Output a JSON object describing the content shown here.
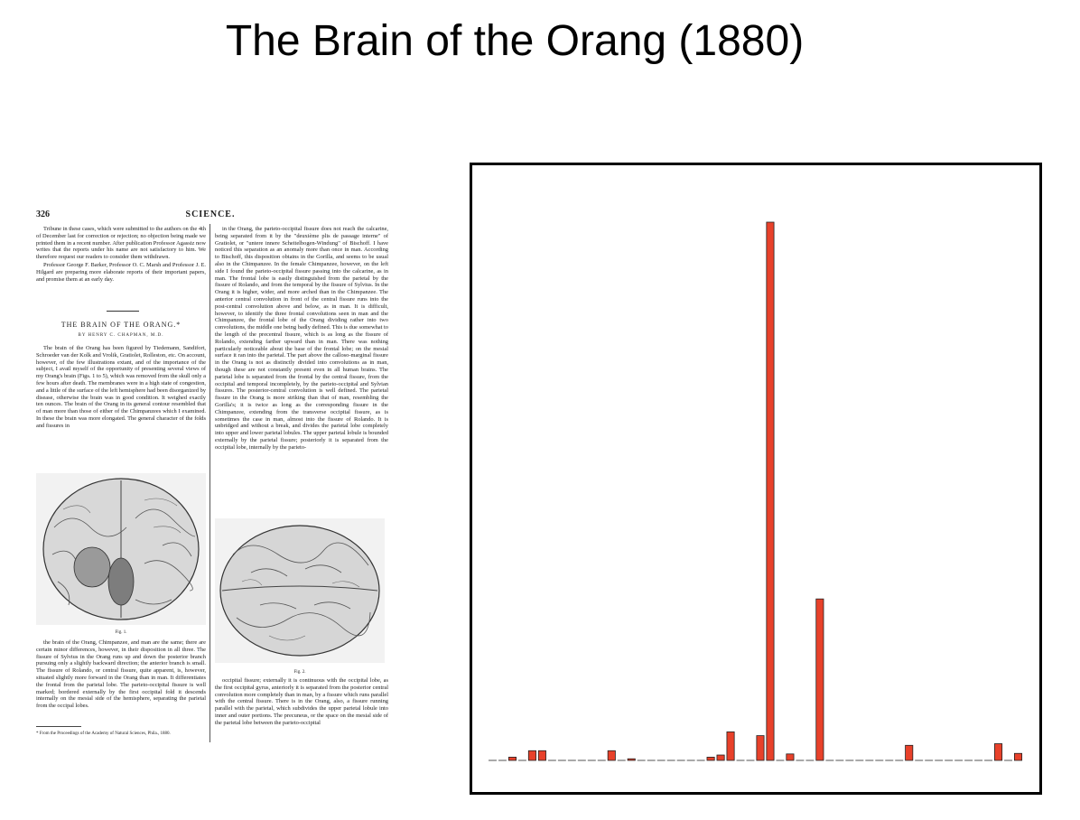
{
  "slide": {
    "title": "The Brain of the Orang (1880)"
  },
  "document": {
    "page_number": "326",
    "journal": "SCIENCE.",
    "left_intro": "Tribune in these cases, which were submitted to the authors on the 4th of December last for correction or rejection; no objection being made we printed them in a recent number. After publication Professor Agassiz now writes that the reports under his name are not satisfactory to him. We therefore request our readers to consider them withdrawn.",
    "left_intro_2": "Professor George F. Barker, Professor O. C. Marsh and Professor J. E. Hilgard are preparing more elaborate reports of their important papers, and promise them at an early day.",
    "article_title": "THE BRAIN OF THE ORANG.*",
    "article_author": "BY HENRY C. CHAPMAN, M.D.",
    "left_body": "The brain of the Orang has been figured by Tiedemann, Sandifort, Schroeder van der Kolk and Vrolik, Gratiolet, Rolleston, etc. On account, however, of the few illustrations extant, and of the importance of the subject, I avail myself of the opportunity of presenting several views of my Orang's brain (Figs. 1 to 5), which was removed from the skull only a few hours after death. The membranes were in a high state of congestion, and a little of the surface of the left hemisphere had been disorganized by disease, otherwise the brain was in good condition. It weighed exactly ten ounces. The brain of the Orang in its general contour resembled that of man more than those of either of the Chimpanzees which I examined. In these the brain was more elongated. The general character of the folds and fissures in",
    "fig1_caption": "Fig. 1.",
    "left_bottom": "the brain of the Orang, Chimpanzee, and man are the same; there are certain minor differences, however, in their disposition in all three. The fissure of Sylvius in the Orang runs up and down the posterior branch pursuing only a slightly backward direction; the anterior branch is small. The fissure of Rolando, or central fissure, quite apparent, is, however, situated slightly more forward in the Orang than in man. It differentiates the frontal from the parietal lobe. The parieto-occipital fissure is well marked; bordered externally by the first occipital fold it descends internally on the mesial side of the hemisphere, separating the parietal from the occipal lobes.",
    "footnote": "* From the Proceedings of the Academy of Natural Sciences, Phila., 1880.",
    "right_body": "in the Orang, the parieto-occipital fissure does not reach the calcarine, being separated from it by the \"deuxième plis de passage interne\" of Gratiolet, or \"untere innere Scheitelbogen-Windung\" of Bischoff. I have noticed this separation as an anomaly more than once in man. According to Bischoff, this disposition obtains in the Gorilla, and seems to be usual also in the Chimpanzee. In the female Chimpanzee, however, on the left side I found the parieto-occipital fissure passing into the calcarine, as in man. The frontal lobe is easily distinguished from the parietal by the fissure of Rolando, and from the temporal by the fissure of Sylvius. In the Orang it is higher, wider, and more arched than in the Chimpanzee. The anterior central convolution in front of the central fissure runs into the post-central convolution above and below, as in man. It is difficult, however, to identify the three frontal convolutions seen in man and the Chimpanzee, the frontal lobe of the Orang dividing rather into two convolutions, the middle one being badly defined. This is due somewhat to the length of the precentral fissure, which is as long as the fissure of Rolando, extending farther upward than in man. There was nothing particularly noticeable about the base of the frontal lobe; on the mesial surface it ran into the parietal. The part above the calloso-marginal fissure in the Orang is not as distinctly divided into convolutions as in man, though these are not constantly present even in all human brains. The parietal lobe is separated from the frontal by the central fissure, from the occipital and temporal incompletely, by the parieto-occipital and Sylvian fissures. The posterior-central convolution is well defined. The parietal fissure in the Orang is more striking than that of man, resembling the Gorilla's; it is twice as long as the corresponding fissure in the Chimpanzee, extending from the transverse occipital fissure, as is sometimes the case in man, almost into the fissure of Rolando. It is unbridged and without a break, and divides the parietal lobe completely into upper and lower parietal lobules. The upper parietal lobule is bounded externally by the parietal fissure; posteriorly it is separated from the occipital lobe, internally by the parieto-",
    "fig2_caption": "Fig. 2.",
    "right_bottom": "occipital fissure; externally it is continuous with the occipital lobe, as the first occipital gyrus, anteriorly it is separated from the posterior central convolution more completely than in man, by a fissure which runs parallel with the central fissure. There is in the Orang, also, a fissure running parallel with the parietal, which subdivides the upper parietal lobule into inner and outer portions. The precuneus, or the space on the mesial side of the parietal lobe between the parieto-occipital"
  },
  "chart_data": {
    "type": "bar",
    "title": "",
    "xlabel": "",
    "ylabel": "",
    "grid": false,
    "bar_color": "#e8412a",
    "baseline_color": "#555555",
    "ylim": [
      0,
      100
    ],
    "values": [
      0,
      0,
      0.6,
      0,
      1.8,
      1.8,
      0,
      0,
      0,
      0,
      0,
      0,
      1.8,
      0,
      0.3,
      0,
      0,
      0,
      0,
      0,
      0,
      0,
      0.6,
      1.0,
      5.3,
      0,
      0,
      4.6,
      100,
      0,
      1.2,
      0,
      0,
      30.0,
      0,
      0,
      0,
      0,
      0,
      0,
      0,
      0,
      2.8,
      0,
      0,
      0,
      0,
      0,
      0,
      0,
      0,
      3.1,
      0,
      1.3
    ]
  }
}
